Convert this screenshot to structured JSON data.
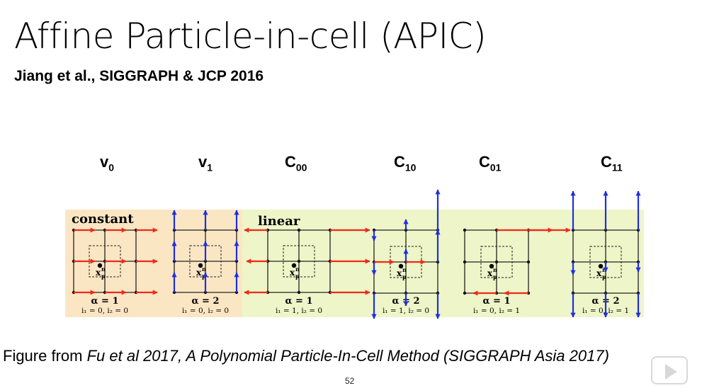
{
  "slide": {
    "title": "Affine Particle-in-cell (APIC)",
    "subtitle": "Jiang et al., SIGGRAPH & JCP 2016",
    "page_number": "52"
  },
  "columns": [
    {
      "base": "v",
      "sub": "0"
    },
    {
      "base": "v",
      "sub": "1"
    },
    {
      "base": "C",
      "sub": "00"
    },
    {
      "base": "C",
      "sub": "10"
    },
    {
      "base": "C",
      "sub": "01"
    },
    {
      "base": "C",
      "sub": "11"
    }
  ],
  "figure": {
    "section_labels": {
      "constant": "constant",
      "linear": "linear"
    },
    "particle_label": "x",
    "particle_sup": "n",
    "particle_sub": "p",
    "panels": [
      {
        "alpha": "α = 1",
        "indices": "i₁ = 0, i₂ = 0"
      },
      {
        "alpha": "α = 2",
        "indices": "i₁ = 0, i₂ = 0"
      },
      {
        "alpha": "α = 1",
        "indices": "i₁ = 1, i₂ = 0"
      },
      {
        "alpha": "α = 2",
        "indices": "i₁ = 1, i₂ = 0"
      },
      {
        "alpha": "α = 1",
        "indices": "i₁ = 0, i₂ = 1"
      },
      {
        "alpha": "α = 2",
        "indices": "i₁ = 0, i₂ = 1"
      }
    ],
    "colors": {
      "constant_bg": "#fbe6c4",
      "linear_bg": "#eef5c8",
      "red_arrow": "#ee2a1a",
      "blue_arrow": "#1f2fe0"
    }
  },
  "caption": {
    "prefix": "Figure from ",
    "italic": "Fu et al 2017, A Polynomial Particle-In-Cell Method (SIGGRAPH Asia 2017)"
  },
  "controls": {
    "icon": "play-icon"
  }
}
